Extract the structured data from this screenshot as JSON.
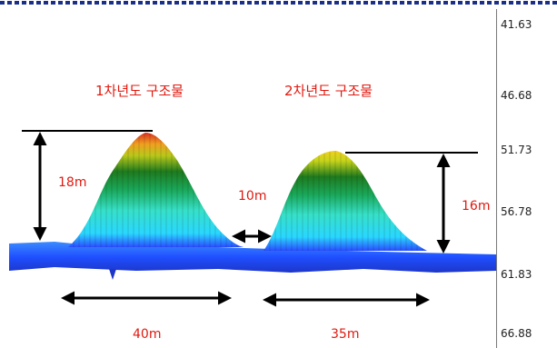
{
  "labels": {
    "structure_1": "1차년도 구조물",
    "structure_2": "2차년도 구조물",
    "height_1": "18m",
    "height_2": "16m",
    "gap": "10m",
    "width_1": "40m",
    "width_2": "35m"
  },
  "color_scale": {
    "values": [
      "41.63",
      "46.68",
      "51.73",
      "56.78",
      "61.83",
      "66.88"
    ],
    "colors": [
      "#ff0000",
      "#ffff00",
      "#00ff00",
      "#00ffff",
      "#0000ff",
      "#ff00ff"
    ]
  },
  "colors": {
    "annotation_text": "#e01a10",
    "top_border": "#1a2f8a",
    "seabed": "#1f4fff"
  }
}
